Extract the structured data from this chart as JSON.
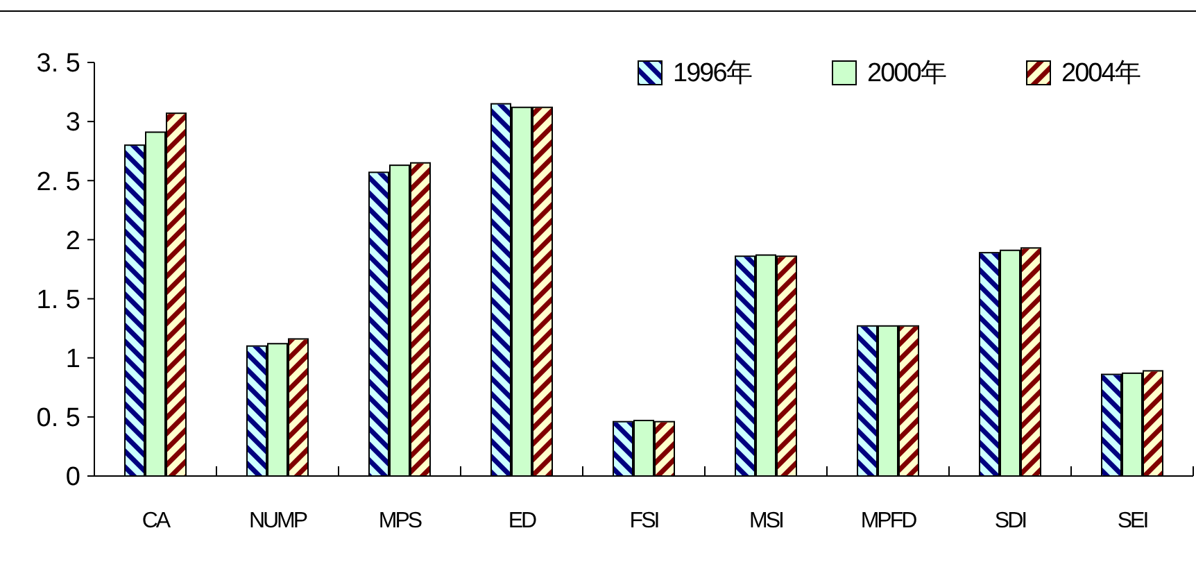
{
  "chart_data": {
    "type": "bar",
    "categories": [
      "CA",
      "NUMP",
      "MPS",
      "ED",
      "FSI",
      "MSI",
      "MPFD",
      "SDI",
      "SEI"
    ],
    "series": [
      {
        "name": "1996年",
        "color": "#ccffff",
        "values": [
          2.8,
          1.1,
          2.57,
          3.15,
          0.46,
          1.86,
          1.27,
          1.89,
          0.86
        ]
      },
      {
        "name": "2000年",
        "color": "#ccffcc",
        "values": [
          2.91,
          1.12,
          2.63,
          3.12,
          0.47,
          1.87,
          1.27,
          1.91,
          0.87
        ]
      },
      {
        "name": "2004年",
        "color": "#ffffcc",
        "values": [
          3.07,
          1.16,
          2.65,
          3.12,
          0.46,
          1.86,
          1.27,
          1.93,
          0.89
        ]
      }
    ],
    "ylim": [
      0,
      3.5
    ],
    "yticks": [
      0,
      {
        "value": 0.5,
        "label": "0. 5"
      },
      1,
      {
        "value": 1.5,
        "label": "1. 5"
      },
      2,
      {
        "value": 2.5,
        "label": "2. 5"
      },
      3,
      {
        "value": 3.5,
        "label": "3. 5"
      }
    ],
    "grid": false,
    "legend": "top right"
  }
}
